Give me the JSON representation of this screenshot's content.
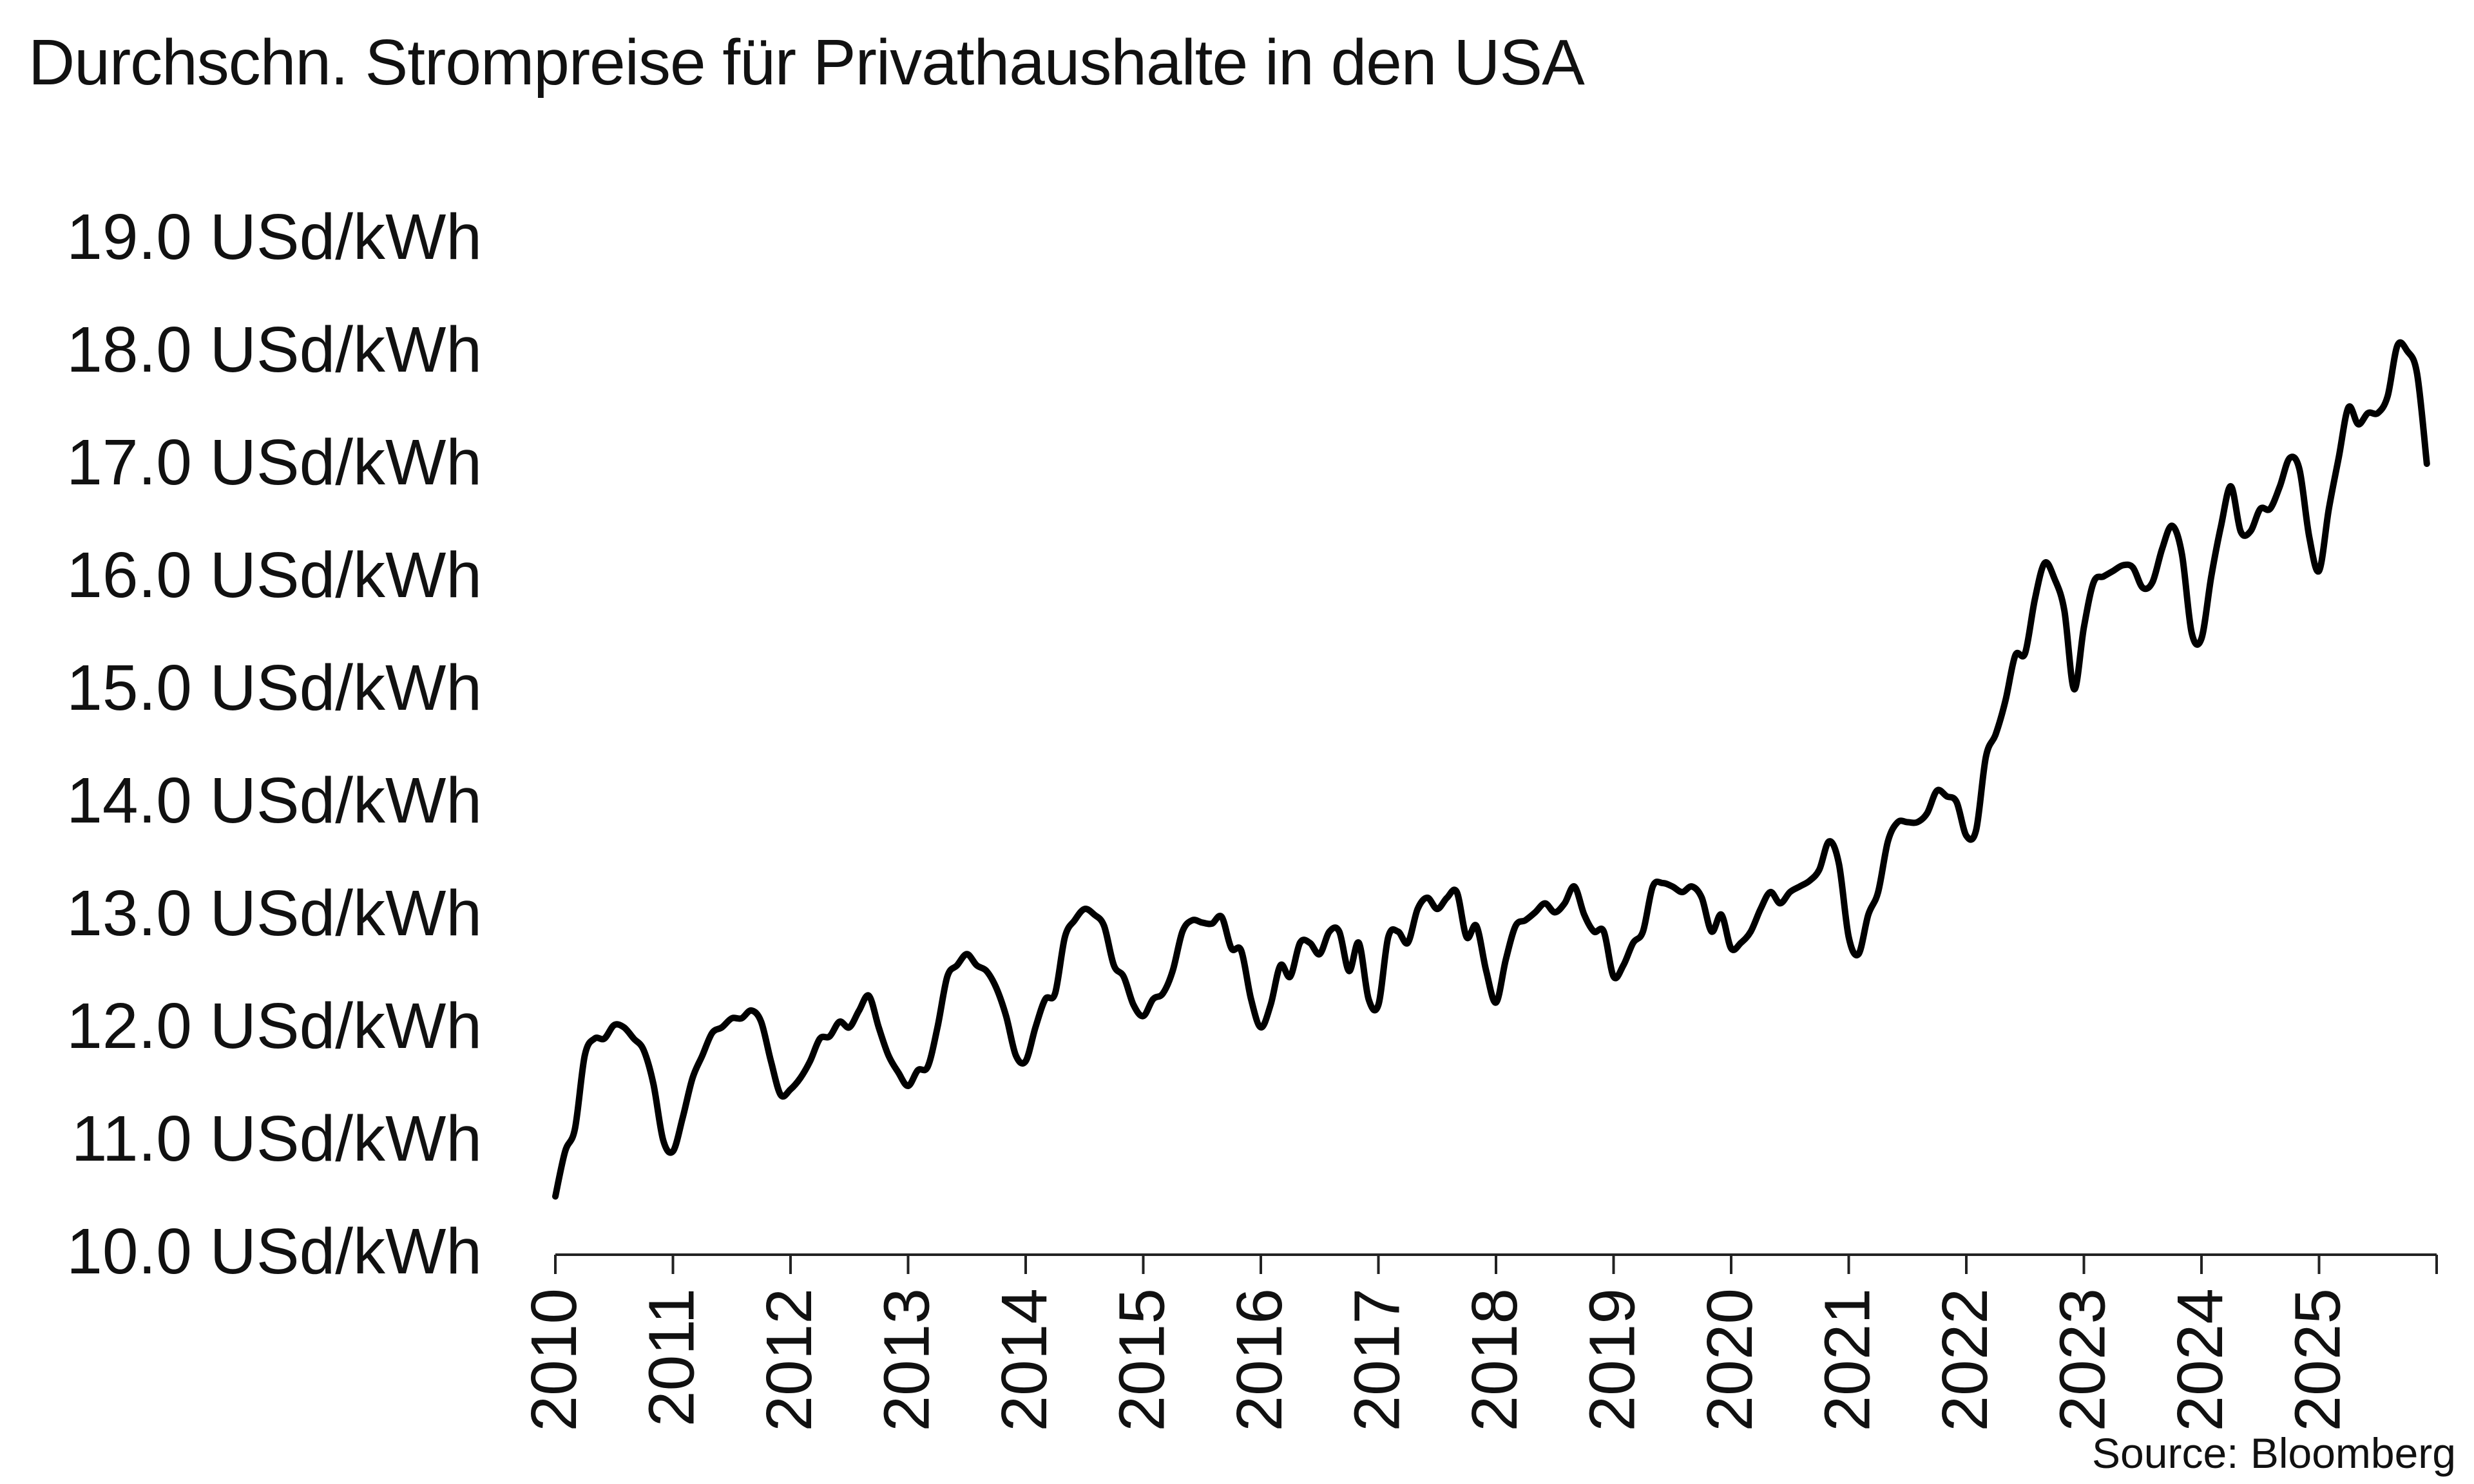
{
  "title": "Durchschn. Strompreise für Privathaushalte in den USA",
  "source": "Source: Bloomberg",
  "chart_data": {
    "type": "line",
    "title": "Durchschn. Strompreise für Privathaushalte in den USA",
    "xlabel": "",
    "ylabel": "",
    "x_tick_labels": [
      "2010",
      "2011",
      "2012",
      "2013",
      "2014",
      "2015",
      "2016",
      "2017",
      "2018",
      "2019",
      "2020",
      "2021",
      "2022",
      "2023",
      "2024",
      "2025"
    ],
    "y_tick_labels": [
      "10.0 USd/kWh",
      "11.0 USd/kWh",
      "12.0 USd/kWh",
      "13.0 USd/kWh",
      "14.0 USd/kWh",
      "15.0 USd/kWh",
      "16.0 USd/kWh",
      "17.0 USd/kWh",
      "18.0 USd/kWh",
      "19.0 USd/kWh"
    ],
    "xlim": [
      "2010-01",
      "2026-01"
    ],
    "ylim": [
      10,
      19
    ],
    "grid": false,
    "legend": "none",
    "line_color": "#000000",
    "series": [
      {
        "x": [
          "2010-01",
          "2010-02",
          "2010-03",
          "2010-04",
          "2010-05",
          "2010-06",
          "2010-07",
          "2010-08",
          "2010-09",
          "2010-10",
          "2010-11",
          "2010-12",
          "2011-01",
          "2011-02",
          "2011-03",
          "2011-04",
          "2011-05",
          "2011-06",
          "2011-07",
          "2011-08",
          "2011-09",
          "2011-10",
          "2011-11",
          "2011-12",
          "2012-01",
          "2012-02",
          "2012-03",
          "2012-04",
          "2012-05",
          "2012-06",
          "2012-07",
          "2012-08",
          "2012-09",
          "2012-10",
          "2012-11",
          "2012-12",
          "2013-01",
          "2013-02",
          "2013-03",
          "2013-04",
          "2013-05",
          "2013-06",
          "2013-07",
          "2013-08",
          "2013-09",
          "2013-10",
          "2013-11",
          "2013-12",
          "2014-01",
          "2014-02",
          "2014-03",
          "2014-04",
          "2014-05",
          "2014-06",
          "2014-07",
          "2014-08",
          "2014-09",
          "2014-10",
          "2014-11",
          "2014-12",
          "2015-01",
          "2015-02",
          "2015-03",
          "2015-04",
          "2015-05",
          "2015-06",
          "2015-07",
          "2015-08",
          "2015-09",
          "2015-10",
          "2015-11",
          "2015-12",
          "2016-01",
          "2016-02",
          "2016-03",
          "2016-04",
          "2016-05",
          "2016-06",
          "2016-07",
          "2016-08",
          "2016-09",
          "2016-10",
          "2016-11",
          "2016-12",
          "2017-01",
          "2017-02",
          "2017-03",
          "2017-04",
          "2017-05",
          "2017-06",
          "2017-07",
          "2017-08",
          "2017-09",
          "2017-10",
          "2017-11",
          "2017-12",
          "2018-01",
          "2018-02",
          "2018-03",
          "2018-04",
          "2018-05",
          "2018-06",
          "2018-07",
          "2018-08",
          "2018-09",
          "2018-10",
          "2018-11",
          "2018-12",
          "2019-01",
          "2019-02",
          "2019-03",
          "2019-04",
          "2019-05",
          "2019-06",
          "2019-07",
          "2019-08",
          "2019-09",
          "2019-10",
          "2019-11",
          "2019-12",
          "2020-01",
          "2020-02",
          "2020-03",
          "2020-04",
          "2020-05",
          "2020-06",
          "2020-07",
          "2020-08",
          "2020-09",
          "2020-10",
          "2020-11",
          "2020-12",
          "2021-01",
          "2021-02",
          "2021-03",
          "2021-04",
          "2021-05",
          "2021-06",
          "2021-07",
          "2021-08",
          "2021-09",
          "2021-10",
          "2021-11",
          "2021-12",
          "2022-01",
          "2022-02",
          "2022-03",
          "2022-04",
          "2022-05",
          "2022-06",
          "2022-07",
          "2022-08",
          "2022-09",
          "2022-10",
          "2022-11",
          "2022-12",
          "2023-01",
          "2023-02",
          "2023-03",
          "2023-04",
          "2023-05",
          "2023-06",
          "2023-07",
          "2023-08",
          "2023-09",
          "2023-10",
          "2023-11",
          "2023-12",
          "2024-01",
          "2024-02",
          "2024-03",
          "2024-04",
          "2024-05",
          "2024-06",
          "2024-07",
          "2024-08",
          "2024-09",
          "2024-10",
          "2024-11",
          "2024-12",
          "2025-01",
          "2025-02",
          "2025-03",
          "2025-04",
          "2025-05",
          "2025-06",
          "2025-07",
          "2025-08",
          "2025-09",
          "2025-10",
          "2025-11",
          "2025-12"
        ],
        "values": [
          10.5,
          10.9,
          11.1,
          11.75,
          11.9,
          11.9,
          12.02,
          12.0,
          11.9,
          11.8,
          11.5,
          11.0,
          10.9,
          11.2,
          11.55,
          11.75,
          11.95,
          12.0,
          12.08,
          12.08,
          12.15,
          12.05,
          11.7,
          11.4,
          11.45,
          11.55,
          11.7,
          11.9,
          11.92,
          12.05,
          12.0,
          12.15,
          12.28,
          12.0,
          11.75,
          11.6,
          11.48,
          11.62,
          11.65,
          12.0,
          12.45,
          12.55,
          12.65,
          12.55,
          12.5,
          12.35,
          12.1,
          11.75,
          11.7,
          12.0,
          12.25,
          12.3,
          12.8,
          12.95,
          13.05,
          13.0,
          12.9,
          12.55,
          12.45,
          12.2,
          12.1,
          12.25,
          12.3,
          12.5,
          12.85,
          12.95,
          12.93,
          12.92,
          12.98,
          12.7,
          12.68,
          12.25,
          12.0,
          12.2,
          12.55,
          12.45,
          12.75,
          12.75,
          12.65,
          12.85,
          12.85,
          12.5,
          12.75,
          12.25,
          12.2,
          12.8,
          12.85,
          12.75,
          13.05,
          13.15,
          13.05,
          13.15,
          13.2,
          12.8,
          12.9,
          12.5,
          12.22,
          12.6,
          12.9,
          12.95,
          13.02,
          13.1,
          13.02,
          13.1,
          13.25,
          13.0,
          12.85,
          12.85,
          12.45,
          12.55,
          12.75,
          12.85,
          13.25,
          13.28,
          13.25,
          13.2,
          13.25,
          13.15,
          12.85,
          13.0,
          12.7,
          12.75,
          12.85,
          13.05,
          13.2,
          13.1,
          13.2,
          13.25,
          13.3,
          13.4,
          13.65,
          13.45,
          12.8,
          12.65,
          13.0,
          13.2,
          13.65,
          13.82,
          13.82,
          13.82,
          13.9,
          14.1,
          14.05,
          14.0,
          13.7,
          13.75,
          14.4,
          14.6,
          14.9,
          15.3,
          15.32,
          15.8,
          16.12,
          15.98,
          15.7,
          15.0,
          15.55,
          15.95,
          16.0,
          16.05,
          16.1,
          16.08,
          15.9,
          15.95,
          16.25,
          16.45,
          16.2,
          15.5,
          15.45,
          16.0,
          16.45,
          16.8,
          16.4,
          16.4,
          16.6,
          16.6,
          16.8,
          17.05,
          16.95,
          16.35,
          16.05,
          16.6,
          17.05,
          17.5,
          17.35,
          17.45,
          17.45,
          17.6,
          18.05,
          18.0,
          17.8,
          17.0
        ]
      }
    ]
  }
}
